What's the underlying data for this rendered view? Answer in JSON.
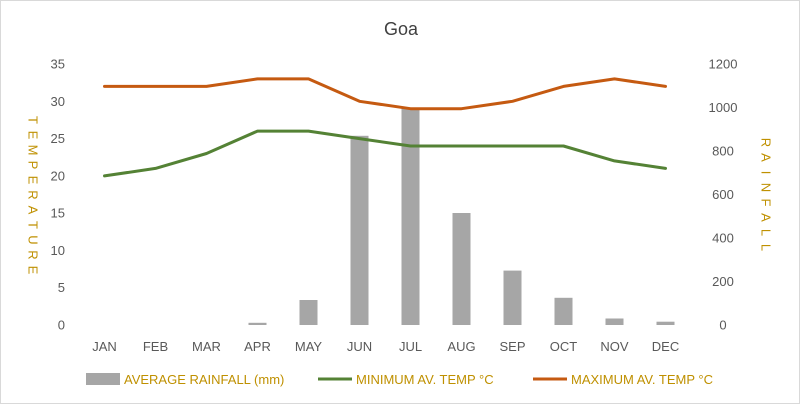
{
  "chart_data": {
    "type": "bar",
    "title": "Goa",
    "categories": [
      "JAN",
      "FEB",
      "MAR",
      "APR",
      "MAY",
      "JUN",
      "JUL",
      "AUG",
      "SEP",
      "OCT",
      "NOV",
      "DEC"
    ],
    "y_left_label": "TEMPERATURE",
    "y_right_label": "RAINFALL",
    "y_left_lim": [
      0,
      35
    ],
    "y_left_ticks": [
      0,
      5,
      10,
      15,
      20,
      25,
      30,
      35
    ],
    "y_right_lim": [
      0,
      1200
    ],
    "y_right_ticks": [
      0,
      200,
      400,
      600,
      800,
      1000,
      1200
    ],
    "grid": false,
    "legend_position": "bottom",
    "series": [
      {
        "name": "AVERAGE RAINFALL (mm)",
        "type": "bar",
        "axis": "right",
        "color": "#a6a6a6",
        "values": [
          0,
          0,
          0,
          10,
          115,
          870,
          1000,
          515,
          250,
          125,
          30,
          15
        ]
      },
      {
        "name": "MINIMUM AV. TEMP °C",
        "type": "line",
        "axis": "left",
        "color": "#548235",
        "values": [
          20,
          21,
          23,
          26,
          26,
          25,
          24,
          24,
          24,
          24,
          22,
          21
        ]
      },
      {
        "name": "MAXIMUM AV. TEMP °C",
        "type": "line",
        "axis": "left",
        "color": "#c55a11",
        "values": [
          32,
          32,
          32,
          33,
          33,
          30,
          29,
          29,
          30,
          32,
          33,
          32
        ]
      }
    ],
    "label_color": "#bf9000",
    "tick_color": "#595959"
  }
}
